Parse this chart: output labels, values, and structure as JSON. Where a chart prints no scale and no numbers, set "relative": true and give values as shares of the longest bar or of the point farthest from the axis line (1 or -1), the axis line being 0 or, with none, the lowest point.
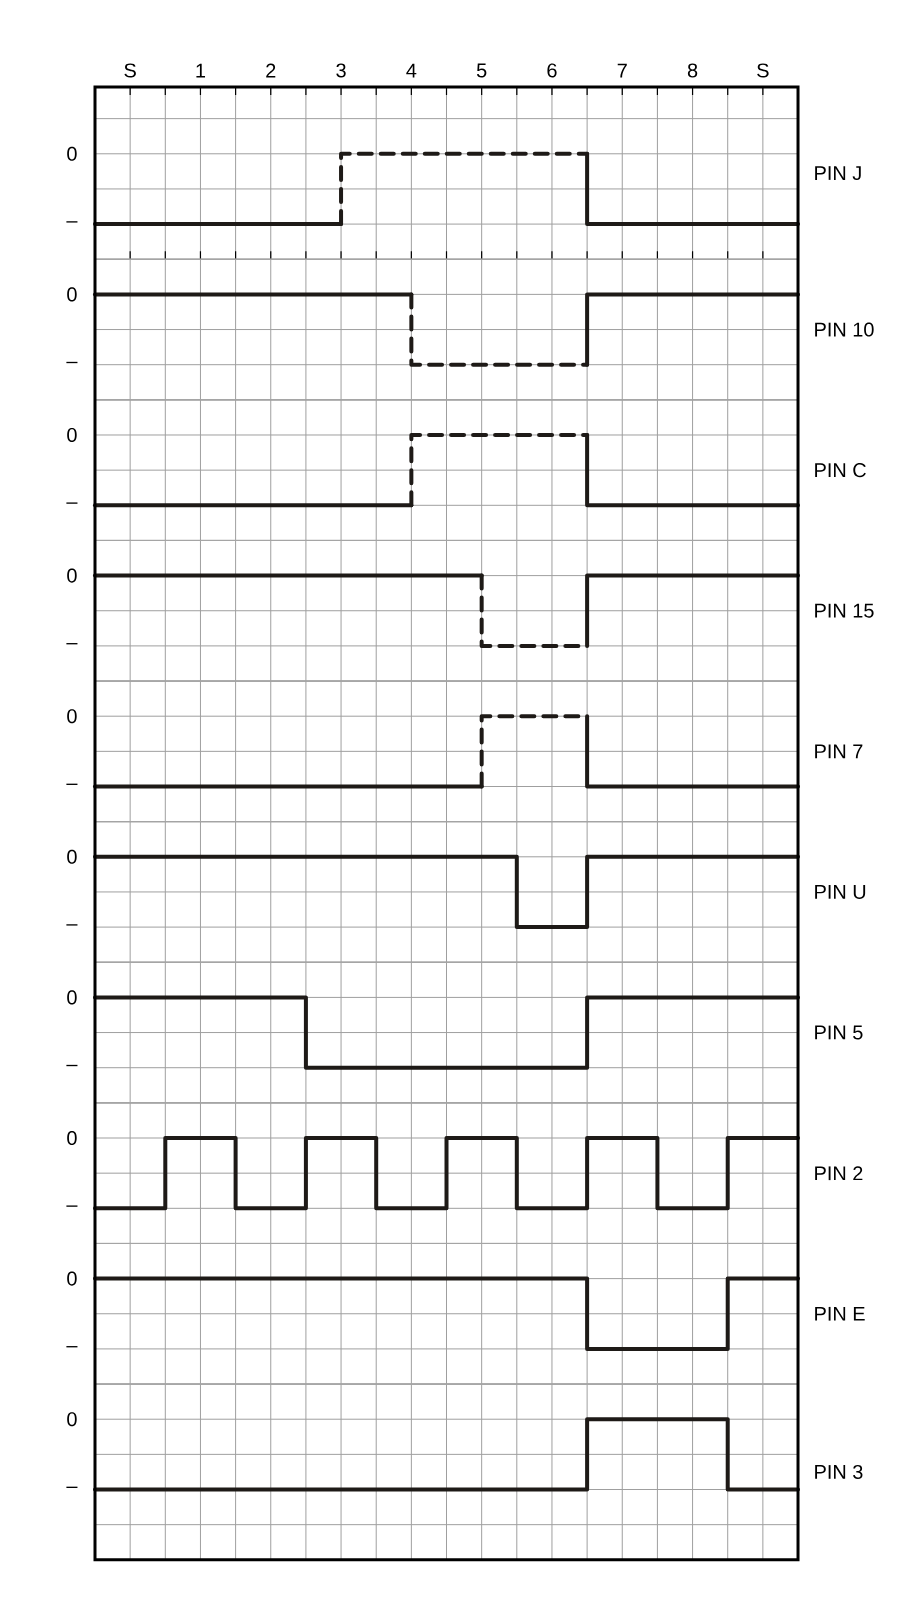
{
  "chart_data": [
    {
      "type": "step",
      "ylabel": "PIN J",
      "relative": true,
      "annotations": [
        "0",
        "–"
      ],
      "xlim": [
        -0.5,
        9.5
      ],
      "grid": true,
      "xticks": [
        {
          "value": -0.5,
          "label": null
        },
        {
          "value": 0,
          "label": "S"
        },
        {
          "value": 0.5,
          "label": null
        },
        1,
        {
          "value": 1.5,
          "label": null
        },
        2,
        {
          "value": 2.5,
          "label": null
        },
        3,
        {
          "value": 3.5,
          "label": null
        },
        4,
        {
          "value": 4.5,
          "label": null
        },
        5,
        {
          "value": 5.5,
          "label": null
        },
        6,
        {
          "value": 6.5,
          "label": null
        },
        7,
        {
          "value": 7.5,
          "label": null
        },
        8,
        {
          "value": 8.5,
          "label": null
        },
        {
          "value": 9,
          "label": "S"
        },
        {
          "value": 9.5,
          "label": null
        }
      ],
      "series": [
        {
          "color": "#1e1a17",
          "line_style": "solid",
          "x": [
            -0.5,
            3
          ],
          "values": [
            0,
            0
          ]
        },
        {
          "color": "#1e1a17",
          "line_style": "dashed",
          "x": [
            3,
            3,
            6.5
          ],
          "values": [
            0,
            1,
            1
          ]
        },
        {
          "color": "#1e1a17",
          "line_style": "solid",
          "x": [
            6.5,
            6.5,
            9.5
          ],
          "values": [
            1,
            0,
            0
          ]
        }
      ]
    },
    {
      "type": "step",
      "ylabel": "PIN 10",
      "relative": true,
      "annotations": [
        "0",
        "–"
      ],
      "tick_labels": false,
      "xlim": [
        -0.5,
        9.5
      ],
      "grid": true,
      "xticks": [
        -0.5,
        0,
        0.5,
        1,
        1.5,
        2,
        2.5,
        3,
        3.5,
        4,
        4.5,
        5,
        5.5,
        6,
        6.5,
        7,
        7.5,
        8,
        8.5,
        9,
        9.5
      ],
      "series": [
        {
          "color": "#1e1a17",
          "line_style": "solid",
          "x": [
            -0.5,
            4
          ],
          "values": [
            1,
            1
          ]
        },
        {
          "color": "#1e1a17",
          "line_style": "dashed",
          "x": [
            4,
            4,
            6.5
          ],
          "values": [
            1,
            0,
            0
          ]
        },
        {
          "color": "#1e1a17",
          "line_style": "solid",
          "x": [
            6.5,
            6.5,
            9.5
          ],
          "values": [
            0,
            1,
            1
          ]
        }
      ]
    },
    {
      "type": "step",
      "ylabel": "PIN C",
      "relative": true,
      "annotations": [
        "0",
        "–"
      ],
      "tick_labels": false,
      "xlim": [
        -0.5,
        9.5
      ],
      "grid": true,
      "xticks": [
        -0.5,
        0,
        0.5,
        1,
        1.5,
        2,
        2.5,
        3,
        3.5,
        4,
        4.5,
        5,
        5.5,
        6,
        6.5,
        7,
        7.5,
        8,
        8.5,
        9,
        9.5
      ],
      "series": [
        {
          "color": "#1e1a17",
          "line_style": "solid",
          "x": [
            -0.5,
            4
          ],
          "values": [
            0,
            0
          ]
        },
        {
          "color": "#1e1a17",
          "line_style": "dashed",
          "x": [
            4,
            4,
            6.5
          ],
          "values": [
            0,
            1,
            1
          ]
        },
        {
          "color": "#1e1a17",
          "line_style": "solid",
          "x": [
            6.5,
            6.5,
            9.5
          ],
          "values": [
            1,
            0,
            0
          ]
        }
      ]
    },
    {
      "type": "step",
      "ylabel": "PIN 15",
      "relative": true,
      "annotations": [
        "0",
        "–"
      ],
      "tick_labels": false,
      "xlim": [
        -0.5,
        9.5
      ],
      "grid": true,
      "xticks": [
        -0.5,
        0,
        0.5,
        1,
        1.5,
        2,
        2.5,
        3,
        3.5,
        4,
        4.5,
        5,
        5.5,
        6,
        6.5,
        7,
        7.5,
        8,
        8.5,
        9,
        9.5
      ],
      "series": [
        {
          "color": "#1e1a17",
          "line_style": "solid",
          "x": [
            -0.5,
            5
          ],
          "values": [
            1,
            1
          ]
        },
        {
          "color": "#1e1a17",
          "line_style": "dashed",
          "x": [
            5,
            5,
            6.5
          ],
          "values": [
            1,
            0,
            0
          ]
        },
        {
          "color": "#1e1a17",
          "line_style": "solid",
          "x": [
            6.5,
            6.5,
            9.5
          ],
          "values": [
            0,
            1,
            1
          ]
        }
      ]
    },
    {
      "type": "step",
      "ylabel": "PIN 7",
      "relative": true,
      "annotations": [
        "0",
        "–"
      ],
      "tick_labels": false,
      "xlim": [
        -0.5,
        9.5
      ],
      "grid": true,
      "xticks": [
        -0.5,
        0,
        0.5,
        1,
        1.5,
        2,
        2.5,
        3,
        3.5,
        4,
        4.5,
        5,
        5.5,
        6,
        6.5,
        7,
        7.5,
        8,
        8.5,
        9,
        9.5
      ],
      "series": [
        {
          "color": "#1e1a17",
          "line_style": "solid",
          "x": [
            -0.5,
            5
          ],
          "values": [
            0,
            0
          ]
        },
        {
          "color": "#1e1a17",
          "line_style": "dashed",
          "x": [
            5,
            5,
            6.5
          ],
          "values": [
            0,
            1,
            1
          ]
        },
        {
          "color": "#1e1a17",
          "line_style": "solid",
          "x": [
            6.5,
            6.5,
            9.5
          ],
          "values": [
            1,
            0,
            0
          ]
        }
      ]
    },
    {
      "type": "step",
      "ylabel": "PIN U",
      "relative": true,
      "annotations": [
        "0",
        "–"
      ],
      "tick_labels": false,
      "xlim": [
        -0.5,
        9.5
      ],
      "grid": true,
      "xticks": [
        -0.5,
        0,
        0.5,
        1,
        1.5,
        2,
        2.5,
        3,
        3.5,
        4,
        4.5,
        5,
        5.5,
        6,
        6.5,
        7,
        7.5,
        8,
        8.5,
        9,
        9.5
      ],
      "series": [
        {
          "color": "#1e1a17",
          "x": [
            -0.5,
            5.5,
            6.5,
            9.5
          ],
          "values": [
            1,
            0,
            1,
            1
          ]
        }
      ]
    },
    {
      "type": "step",
      "ylabel": "PIN 5",
      "relative": true,
      "annotations": [
        "0",
        "–"
      ],
      "tick_labels": false,
      "xlim": [
        -0.5,
        9.5
      ],
      "grid": true,
      "xticks": [
        -0.5,
        0,
        0.5,
        1,
        1.5,
        2,
        2.5,
        3,
        3.5,
        4,
        4.5,
        5,
        5.5,
        6,
        6.5,
        7,
        7.5,
        8,
        8.5,
        9,
        9.5
      ],
      "series": [
        {
          "color": "#1e1a17",
          "x": [
            -0.5,
            2.5,
            6.5,
            9.5
          ],
          "values": [
            1,
            0,
            1,
            1
          ]
        }
      ]
    },
    {
      "type": "step",
      "ylabel": "PIN 2",
      "relative": true,
      "annotations": [
        "0",
        "–"
      ],
      "tick_labels": false,
      "xlim": [
        -0.5,
        9.5
      ],
      "grid": true,
      "xticks": [
        -0.5,
        0,
        0.5,
        1,
        1.5,
        2,
        2.5,
        3,
        3.5,
        4,
        4.5,
        5,
        5.5,
        6,
        6.5,
        7,
        7.5,
        8,
        8.5,
        9,
        9.5
      ],
      "series": [
        {
          "color": "#1e1a17",
          "x": [
            -0.5,
            0.5,
            1.5,
            2.5,
            3.5,
            4.5,
            5.5,
            6.5,
            7.5,
            8.5,
            9.5
          ],
          "values": [
            0,
            1,
            0,
            1,
            0,
            1,
            0,
            1,
            0,
            1,
            1
          ]
        }
      ]
    },
    {
      "type": "step",
      "ylabel": "PIN E",
      "relative": true,
      "annotations": [
        "0",
        "–"
      ],
      "tick_labels": false,
      "xlim": [
        -0.5,
        9.5
      ],
      "grid": true,
      "xticks": [
        -0.5,
        0,
        0.5,
        1,
        1.5,
        2,
        2.5,
        3,
        3.5,
        4,
        4.5,
        5,
        5.5,
        6,
        6.5,
        7,
        7.5,
        8,
        8.5,
        9,
        9.5
      ],
      "series": [
        {
          "color": "#1e1a17",
          "x": [
            -0.5,
            6.5,
            8.5,
            9.5
          ],
          "values": [
            1,
            0,
            1,
            1
          ]
        }
      ]
    },
    {
      "type": "step",
      "ylabel": "PIN 3",
      "relative": true,
      "annotations": [
        "0",
        "–"
      ],
      "tick_labels": false,
      "xlim": [
        -0.5,
        9.5
      ],
      "grid": true,
      "xticks": [
        -0.5,
        0,
        0.5,
        1,
        1.5,
        2,
        2.5,
        3,
        3.5,
        4,
        4.5,
        5,
        5.5,
        6,
        6.5,
        7,
        7.5,
        8,
        8.5,
        9,
        9.5
      ],
      "series": [
        {
          "color": "#1e1a17",
          "x": [
            -0.5,
            6.5,
            8.5,
            9.5
          ],
          "values": [
            0,
            1,
            0,
            0
          ]
        }
      ]
    }
  ]
}
